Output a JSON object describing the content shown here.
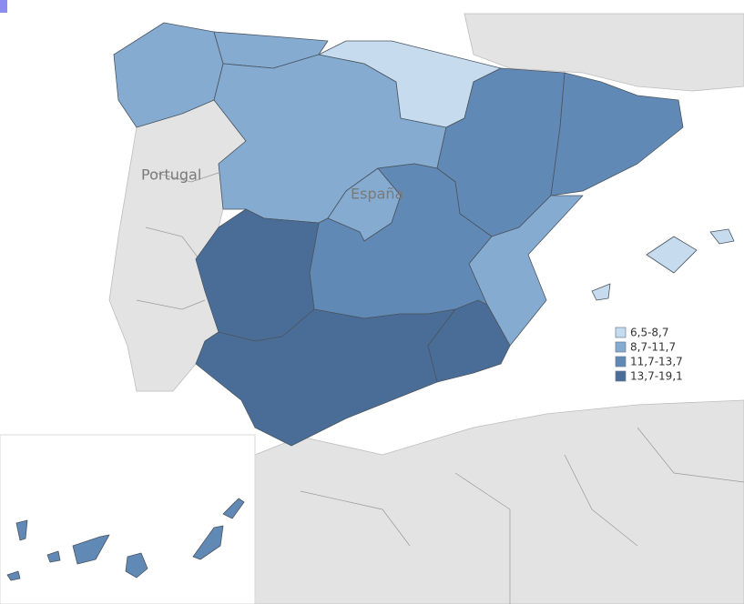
{
  "map": {
    "labels": [
      "Portugal",
      "España"
    ],
    "legend": [
      {
        "label": "6,5-8,7",
        "color": "#c6dcee"
      },
      {
        "label": "8,7-11,7",
        "color": "#85abd1"
      },
      {
        "label": "11,7-13,7",
        "color": "#6189b5"
      },
      {
        "label": "13,7-19,1",
        "color": "#4a6d98"
      }
    ]
  }
}
